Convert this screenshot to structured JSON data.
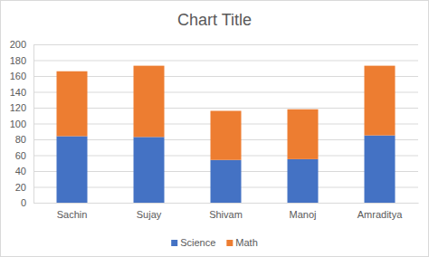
{
  "chart_data": {
    "type": "bar",
    "title": "Chart Title",
    "categories": [
      "Sachin",
      "Sujay",
      "Shivam",
      "Manoj",
      "Amraditya"
    ],
    "series": [
      {
        "name": "Science",
        "color": "#4472c4",
        "values": [
          84,
          83,
          54,
          55,
          85
        ]
      },
      {
        "name": "Math",
        "color": "#ed7d31",
        "values": [
          82,
          90,
          62,
          63,
          88
        ]
      }
    ],
    "ylim": [
      0,
      200
    ],
    "yticks": [
      0,
      20,
      40,
      60,
      80,
      100,
      120,
      140,
      160,
      180,
      200
    ],
    "grid": true,
    "stacked": true,
    "legend": "bottom"
  }
}
